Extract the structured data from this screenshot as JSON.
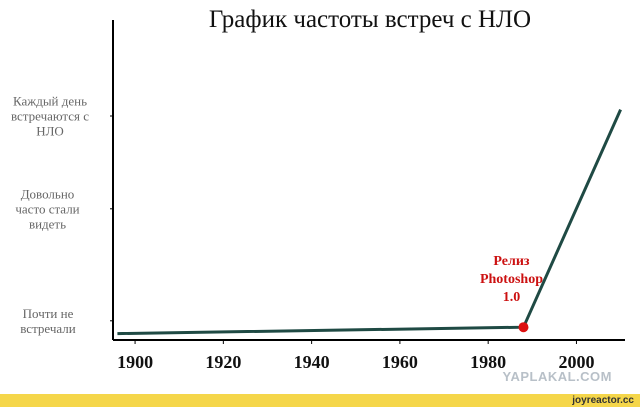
{
  "chart_data": {
    "type": "line",
    "title": "График частоты встреч с НЛО",
    "x": [
      1896,
      1988,
      2010
    ],
    "values": [
      0.2,
      0.4,
      7.2
    ],
    "color": "#1f4a44",
    "marker_color": "#dd1111",
    "xlim": [
      1895,
      2011
    ],
    "ylim": [
      0,
      10
    ],
    "xticks": [
      1900,
      1920,
      1940,
      1960,
      1980,
      2000
    ],
    "yticks": [
      {
        "value": 0.6,
        "label": "Почти не встречали"
      },
      {
        "value": 4.1,
        "label": "Довольно часто стали видеть"
      },
      {
        "value": 7.0,
        "label": "Каждый день встречаются с НЛО"
      }
    ],
    "annotation": {
      "text": "Релиз Photoshop 1.0",
      "color": "#cc1111"
    }
  },
  "watermarks": [
    "YAPLAKAL.COM",
    "joyreactor.cc"
  ]
}
